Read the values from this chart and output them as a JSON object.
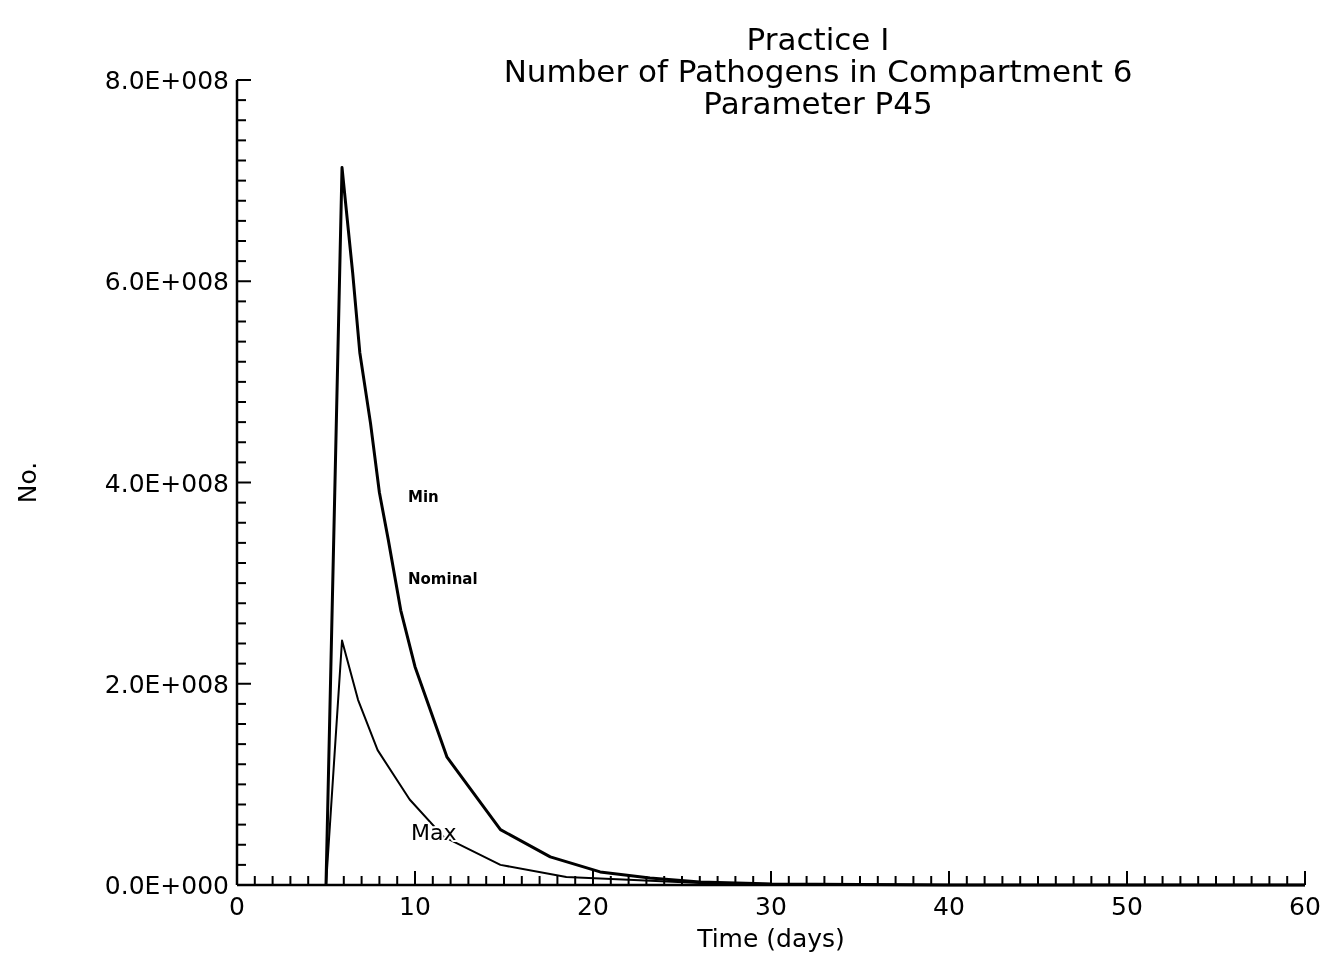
{
  "chart_data": {
    "type": "line",
    "title": "Practice I\nNumber of Pathogens in Compartment 6\nParameter P45",
    "xlabel": "Time (days)",
    "ylabel": "No.",
    "xlim": [
      0,
      60
    ],
    "ylim": [
      0,
      800000000
    ],
    "xticks": [
      0,
      {
        "value": 1,
        "label": null
      },
      {
        "value": 2,
        "label": null
      },
      {
        "value": 3,
        "label": null
      },
      {
        "value": 4,
        "label": null
      },
      {
        "value": 5,
        "label": null
      },
      {
        "value": 6,
        "label": null
      },
      {
        "value": 7,
        "label": null
      },
      {
        "value": 8,
        "label": null
      },
      {
        "value": 9,
        "label": null
      },
      10,
      {
        "value": 11,
        "label": null
      },
      {
        "value": 12,
        "label": null
      },
      {
        "value": 13,
        "label": null
      },
      {
        "value": 14,
        "label": null
      },
      {
        "value": 15,
        "label": null
      },
      {
        "value": 16,
        "label": null
      },
      {
        "value": 17,
        "label": null
      },
      {
        "value": 18,
        "label": null
      },
      {
        "value": 19,
        "label": null
      },
      20,
      {
        "value": 21,
        "label": null
      },
      {
        "value": 22,
        "label": null
      },
      {
        "value": 23,
        "label": null
      },
      {
        "value": 24,
        "label": null
      },
      {
        "value": 25,
        "label": null
      },
      {
        "value": 26,
        "label": null
      },
      {
        "value": 27,
        "label": null
      },
      {
        "value": 28,
        "label": null
      },
      {
        "value": 29,
        "label": null
      },
      30,
      {
        "value": 31,
        "label": null
      },
      {
        "value": 32,
        "label": null
      },
      {
        "value": 33,
        "label": null
      },
      {
        "value": 34,
        "label": null
      },
      {
        "value": 35,
        "label": null
      },
      {
        "value": 36,
        "label": null
      },
      {
        "value": 37,
        "label": null
      },
      {
        "value": 38,
        "label": null
      },
      {
        "value": 39,
        "label": null
      },
      40,
      {
        "value": 41,
        "label": null
      },
      {
        "value": 42,
        "label": null
      },
      {
        "value": 43,
        "label": null
      },
      {
        "value": 44,
        "label": null
      },
      {
        "value": 45,
        "label": null
      },
      {
        "value": 46,
        "label": null
      },
      {
        "value": 47,
        "label": null
      },
      {
        "value": 48,
        "label": null
      },
      {
        "value": 49,
        "label": null
      },
      50,
      {
        "value": 51,
        "label": null
      },
      {
        "value": 52,
        "label": null
      },
      {
        "value": 53,
        "label": null
      },
      {
        "value": 54,
        "label": null
      },
      {
        "value": 55,
        "label": null
      },
      {
        "value": 56,
        "label": null
      },
      {
        "value": 57,
        "label": null
      },
      {
        "value": 58,
        "label": null
      },
      {
        "value": 59,
        "label": null
      },
      60
    ],
    "yticks": [
      {
        "value": 0,
        "label": "0.0E+000"
      },
      {
        "value": 20000000,
        "label": null
      },
      {
        "value": 40000000,
        "label": null
      },
      {
        "value": 60000000,
        "label": null
      },
      {
        "value": 80000000,
        "label": null
      },
      {
        "value": 100000000,
        "label": null
      },
      {
        "value": 120000000,
        "label": null
      },
      {
        "value": 140000000,
        "label": null
      },
      {
        "value": 160000000,
        "label": null
      },
      {
        "value": 180000000,
        "label": null
      },
      {
        "value": 200000000,
        "label": "2.0E+008"
      },
      {
        "value": 220000000,
        "label": null
      },
      {
        "value": 240000000,
        "label": null
      },
      {
        "value": 260000000,
        "label": null
      },
      {
        "value": 280000000,
        "label": null
      },
      {
        "value": 300000000,
        "label": null
      },
      {
        "value": 320000000,
        "label": null
      },
      {
        "value": 340000000,
        "label": null
      },
      {
        "value": 360000000,
        "label": null
      },
      {
        "value": 380000000,
        "label": null
      },
      {
        "value": 400000000,
        "label": "4.0E+008"
      },
      {
        "value": 420000000,
        "label": null
      },
      {
        "value": 440000000,
        "label": null
      },
      {
        "value": 460000000,
        "label": null
      },
      {
        "value": 480000000,
        "label": null
      },
      {
        "value": 500000000,
        "label": null
      },
      {
        "value": 520000000,
        "label": null
      },
      {
        "value": 540000000,
        "label": null
      },
      {
        "value": 560000000,
        "label": null
      },
      {
        "value": 580000000,
        "label": null
      },
      {
        "value": 600000000,
        "label": "6.0E+008"
      },
      {
        "value": 620000000,
        "label": null
      },
      {
        "value": 640000000,
        "label": null
      },
      {
        "value": 660000000,
        "label": null
      },
      {
        "value": 680000000,
        "label": null
      },
      {
        "value": 700000000,
        "label": null
      },
      {
        "value": 720000000,
        "label": null
      },
      {
        "value": 740000000,
        "label": null
      },
      {
        "value": 760000000,
        "label": null
      },
      {
        "value": 780000000,
        "label": null
      },
      {
        "value": 800000000,
        "label": "8.0E+008"
      }
    ],
    "series": [
      {
        "color": "#000000",
        "x": [
          5,
          5.9,
          6.5,
          6.9,
          7.5,
          8,
          8.5,
          9.2,
          10,
          11.8,
          14.8,
          17.6,
          20.4,
          23.2,
          26,
          30,
          40,
          50,
          60
        ],
        "values": [
          0,
          713000000,
          608000000,
          529000000,
          459000000,
          390000000,
          343000000,
          273000000,
          217000000,
          127000000,
          55000000,
          28000000,
          13000000,
          7000000,
          3000000,
          1000000,
          0,
          0,
          0
        ]
      },
      {
        "color": "#000000",
        "x": [
          5,
          5.9,
          6.8,
          7.9,
          9.7,
          11.6,
          14.8,
          18.5,
          22.3,
          26,
          30,
          40,
          50,
          60
        ],
        "values": [
          0,
          243000000,
          184000000,
          134000000,
          85000000,
          48000000,
          20000000,
          8000000,
          5000000,
          2000000,
          1000000,
          0,
          0,
          0
        ]
      }
    ],
    "annotations": [
      "Min",
      "Nominal",
      "Max"
    ],
    "marker": "none",
    "line_style": "solid",
    "grid": false
  }
}
